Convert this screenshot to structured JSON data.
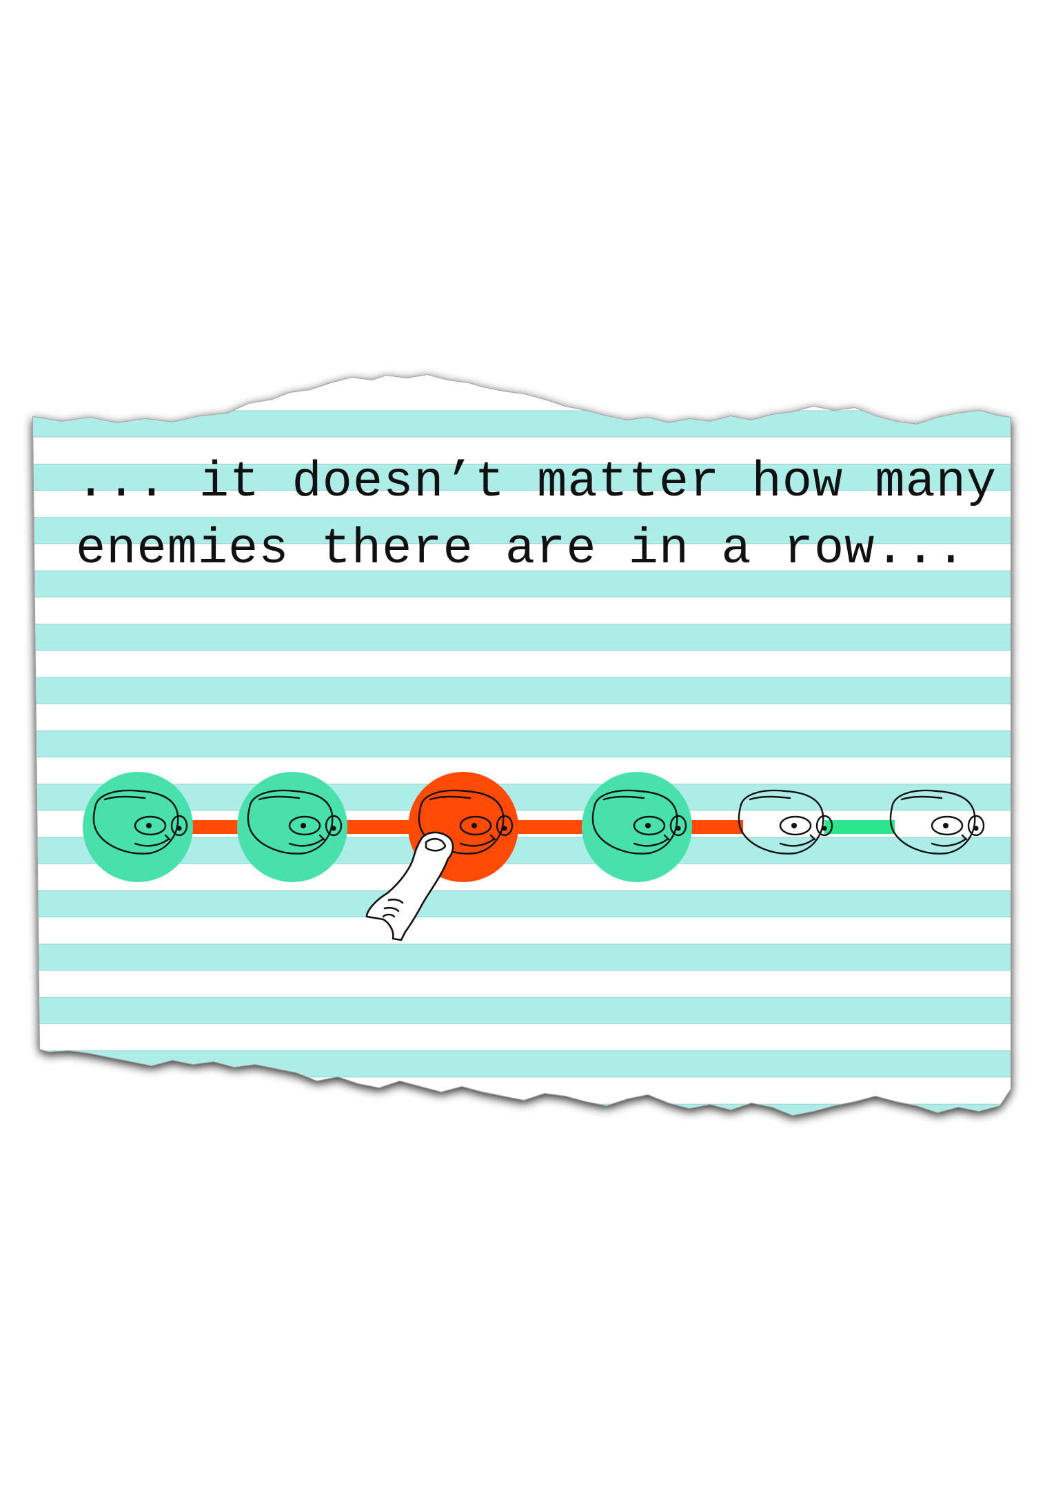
{
  "caption": {
    "text": "... it doesn’t matter how many enemies there are in a row..."
  },
  "colors": {
    "stripe": "#aeece8",
    "stripe_line": "#8fd6d1",
    "paper": "#ffffff",
    "enemy_green": "#48e0ab",
    "selected_orange": "#ff4a05",
    "link_orange": "#ff4a05",
    "link_green": "#2ce68f",
    "ink": "#111111"
  },
  "scene": {
    "enemies": [
      {
        "name": "enemy-1",
        "state": "active",
        "circle": "green"
      },
      {
        "name": "enemy-2",
        "state": "active",
        "circle": "green"
      },
      {
        "name": "enemy-3",
        "state": "selected",
        "circle": "orange"
      },
      {
        "name": "enemy-4",
        "state": "active",
        "circle": "green"
      },
      {
        "name": "enemy-5",
        "state": "inactive",
        "circle": "none"
      },
      {
        "name": "enemy-6",
        "state": "inactive",
        "circle": "none"
      }
    ],
    "links": [
      {
        "from": 1,
        "to": 2,
        "color": "orange"
      },
      {
        "from": 2,
        "to": 3,
        "color": "orange"
      },
      {
        "from": 3,
        "to": 4,
        "color": "orange"
      },
      {
        "from": 4,
        "to": 5,
        "color": "orange"
      },
      {
        "from": 5,
        "to": 6,
        "color": "green"
      }
    ],
    "pointer": "finger-pointer-icon"
  }
}
